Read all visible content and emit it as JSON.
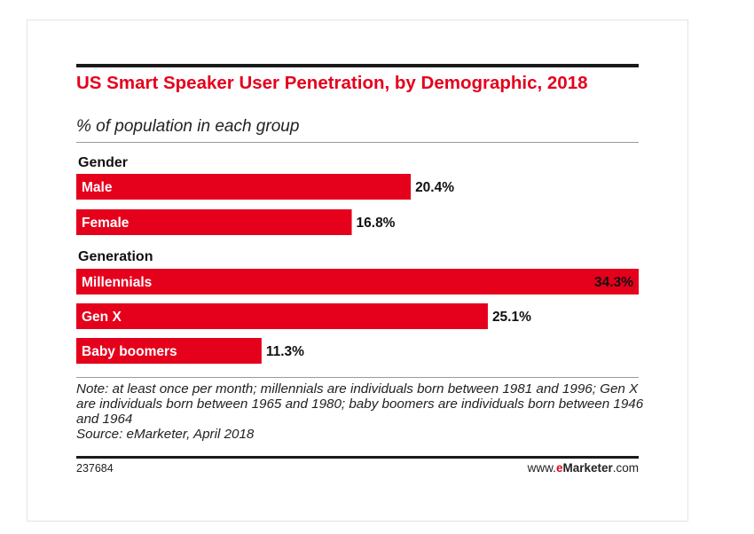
{
  "header": {
    "title": "US Smart Speaker User Penetration, by Demographic, 2018",
    "subtitle": "% of population in each group"
  },
  "colors": {
    "accent": "#e5001c",
    "text": "#111111"
  },
  "chart_data": {
    "type": "bar",
    "orientation": "horizontal",
    "title": "US Smart Speaker User Penetration, by Demographic, 2018",
    "subtitle": "% of population in each group",
    "xlim": [
      0,
      34.3
    ],
    "grid": false,
    "groups": [
      {
        "name": "Gender",
        "categories": [
          "Male",
          "Female"
        ],
        "values": [
          20.4,
          16.8
        ],
        "labels": [
          "20.4%",
          "16.8%"
        ]
      },
      {
        "name": "Generation",
        "categories": [
          "Millennials",
          "Gen X",
          "Baby boomers"
        ],
        "values": [
          34.3,
          25.1,
          11.3
        ],
        "labels": [
          "34.3%",
          "25.1%",
          "11.3%"
        ]
      }
    ]
  },
  "footer": {
    "note": "Note: at least once per month; millennials are individuals born between 1981 and 1996; Gen X are individuals born between 1965 and 1980; baby boomers are individuals born between 1946 and 1964",
    "source": "Source: eMarketer, April 2018",
    "chart_id": "237684",
    "brand_prefix": "www.",
    "brand_e": "e",
    "brand_main": "Marketer",
    "brand_suffix": ".com"
  }
}
